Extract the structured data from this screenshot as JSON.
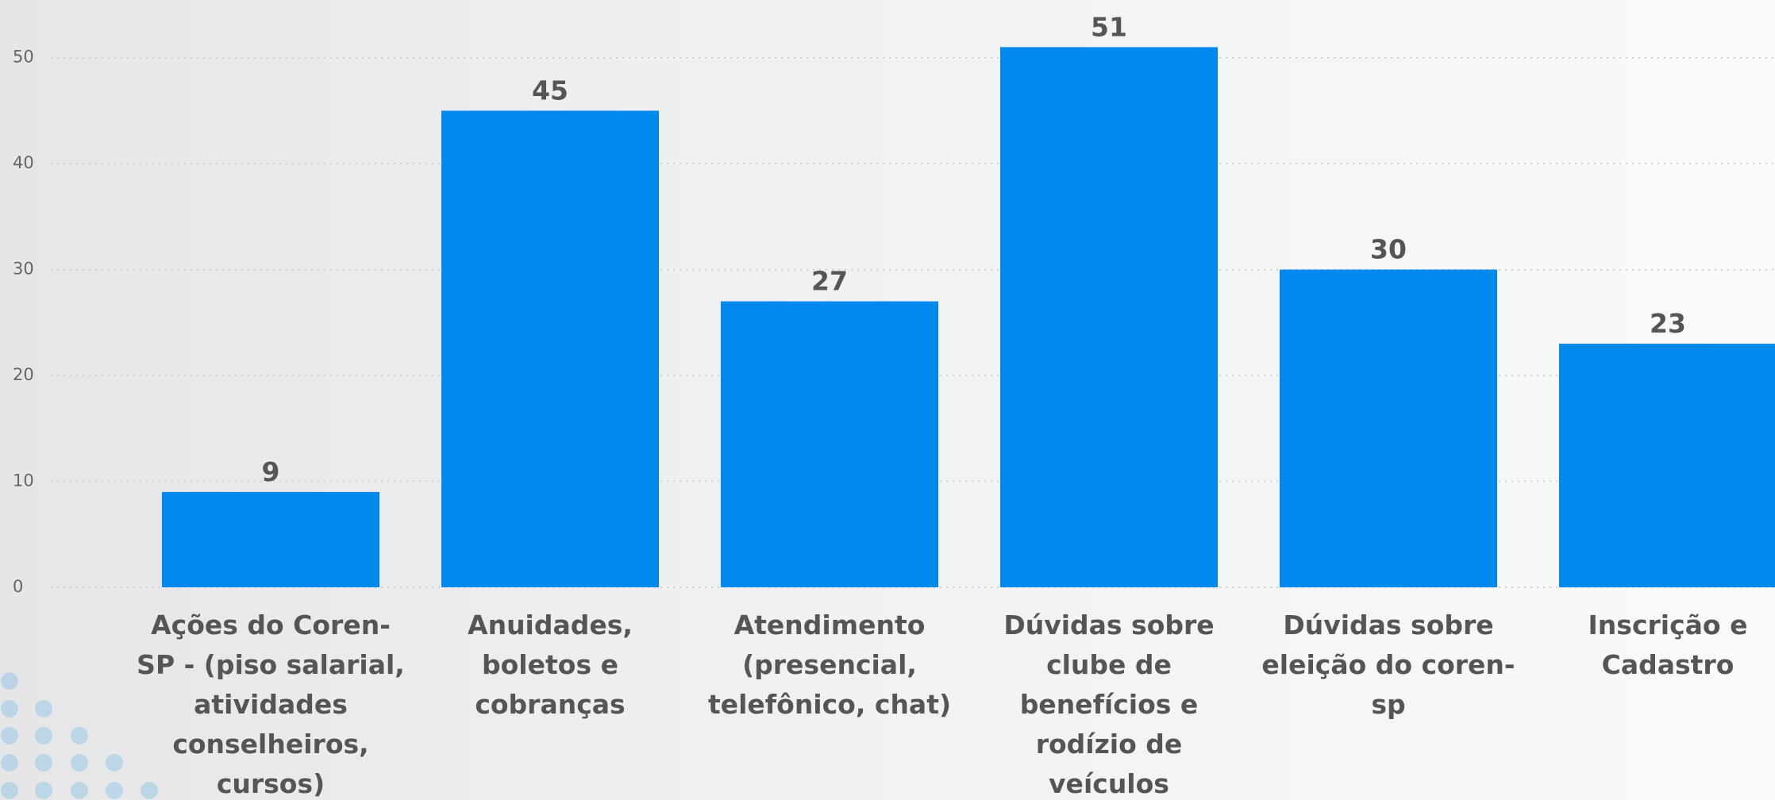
{
  "chart_data": {
    "type": "bar",
    "categories": [
      "Ações do Coren-SP - (piso salarial, atividades conselheiros, cursos)",
      "Anuidades, boletos e cobranças",
      "Atendimento (presencial, telefônico, chat)",
      "Dúvidas sobre clube de benefícios e rodízio de veículos",
      "Dúvidas sobre eleição do coren-sp",
      "Inscrição e Cadastro"
    ],
    "values": [
      9,
      45,
      27,
      51,
      30,
      23
    ],
    "color": "#0089ed",
    "ylim": [
      0,
      55
    ],
    "yticks": [
      0,
      10,
      20,
      30,
      40,
      50
    ],
    "grid": true
  }
}
